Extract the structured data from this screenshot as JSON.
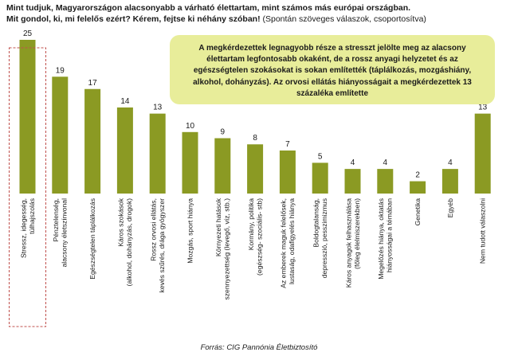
{
  "header": {
    "line1": "Mint tudjuk, Magyarországon alacsonyabb a várható élettartam, mint számos más európai országban.",
    "line2_question": "Mit gondol, ki, mi felelős ezért? Kérem, fejtse ki néhány szóban!",
    "line2_note": " (Spontán szöveges válaszok, csoportosítva)"
  },
  "callout": {
    "text": "A megkérdezettek legnagyobb része a stresszt jelölte meg az alacsony élettartam legfontosabb okaként, de a rossz anyagi helyzetet és az egészségtelen szokásokat is  sokan említették (táplálkozás, mozgáshiány, alkohol, dohányzás). Az orvosi ellátás hiányosságait a megkérdezettek 13 százaléka említette"
  },
  "source": "Forrás: CIG Pannónia Életbiztosító",
  "colors": {
    "bar": "#8b9a23",
    "highlight": "#c0504d",
    "callout": "#e8ed9a"
  },
  "chart_data": {
    "type": "bar",
    "title": "",
    "xlabel": "",
    "ylabel": "",
    "ylim": [
      0,
      25
    ],
    "highlight_index": 0,
    "categories": [
      [
        "Stressz, idegesség,",
        "túlhajszolás"
      ],
      [
        "Pénztelenség,",
        "alacsony életszínvonal"
      ],
      [
        "Egészségtelen táplálkozás"
      ],
      [
        "Káros szokások",
        "(alkohol, dohányzás, drogok)"
      ],
      [
        "Rossz orvosi ellátás,",
        "kevés szűrés, drága gyógyszer"
      ],
      [
        "Mozgás, sport hiánya"
      ],
      [
        "Környezeti hatások",
        "szennyezettség (levegő, víz, stb.)"
      ],
      [
        "Kormány, politika",
        "(egészség- szociális- stb)"
      ],
      [
        "Az emberek maguk felelősek,",
        "lustaság, odafigyelés hiánya"
      ],
      [
        "Boldogtalanság,",
        "depresszió, pesszimizmus"
      ],
      [
        "Káros anyagok felhasználása",
        "(főleg élelmiszerekben)"
      ],
      [
        "Megelőzés hiánya, oktatás",
        "hiányosságai a témában"
      ],
      [
        "Genetika"
      ],
      [
        "Egyéb"
      ],
      [
        "Nem tudott válaszolni"
      ]
    ],
    "values": [
      25,
      19,
      17,
      14,
      13,
      10,
      9,
      8,
      7,
      5,
      4,
      4,
      2,
      4,
      13
    ]
  }
}
